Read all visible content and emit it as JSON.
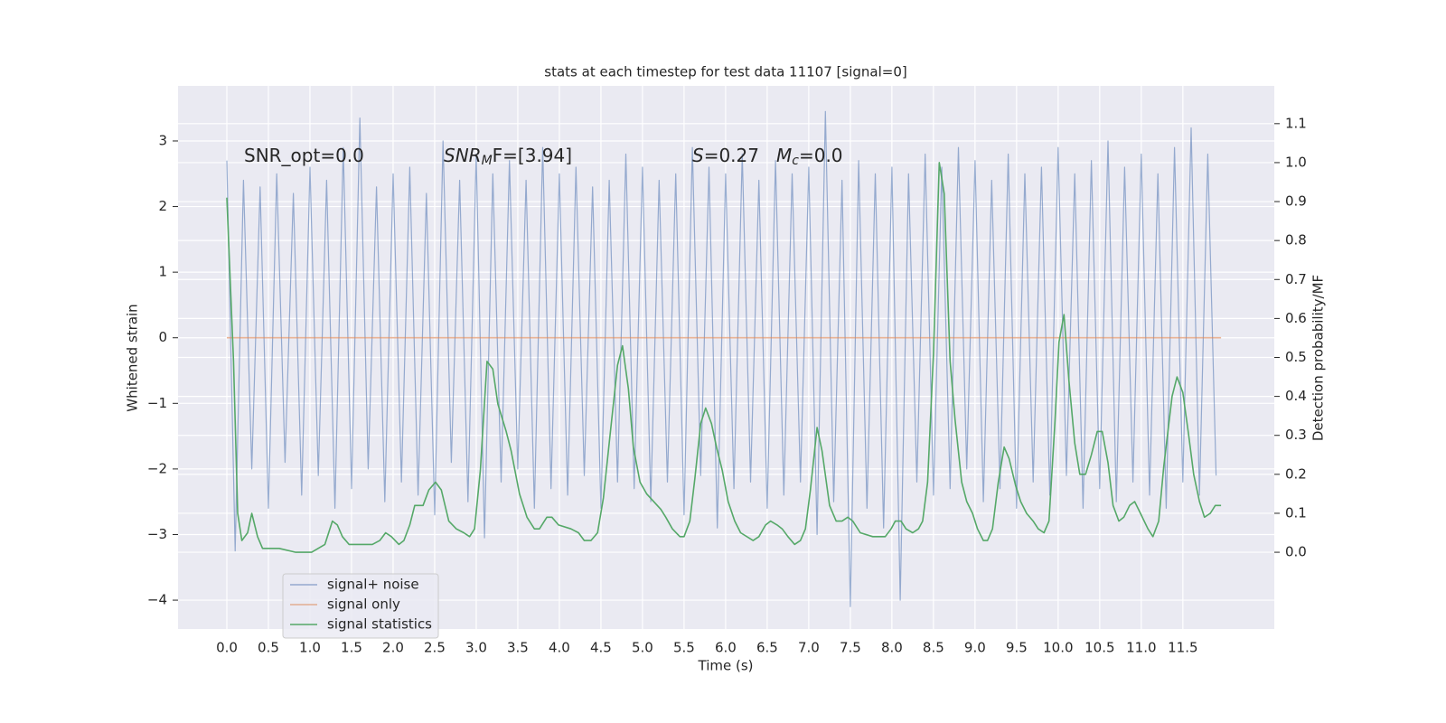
{
  "chart_data": {
    "type": "line",
    "title": "stats at each timestep for test data 11107 [signal=0]",
    "xlabel": "Time (s)",
    "ylabel": "Whitened strain",
    "y2label": "Detection probability/MF",
    "annotations": [
      [
        "SNR_opt=0.0"
      ],
      [
        "SNR",
        "M",
        "F=[3.94]"
      ],
      [
        "S",
        "=0.27"
      ],
      [
        "M",
        "c",
        "=0.0"
      ]
    ],
    "xlim": [
      -0.587,
      12.6
    ],
    "ylim": [
      -4.44,
      3.84
    ],
    "y2lim": [
      -0.197,
      1.197
    ],
    "xticks": [
      {
        "value": 0,
        "label": "0.0"
      },
      0.5,
      {
        "value": 1,
        "label": "1.0"
      },
      1.5,
      {
        "value": 2,
        "label": "2.0"
      },
      2.5,
      {
        "value": 3,
        "label": "3.0"
      },
      3.5,
      {
        "value": 4,
        "label": "4.0"
      },
      4.5,
      {
        "value": 5,
        "label": "5.0"
      },
      5.5,
      {
        "value": 6,
        "label": "6.0"
      },
      6.5,
      {
        "value": 7,
        "label": "7.0"
      },
      7.5,
      {
        "value": 8,
        "label": "8.0"
      },
      8.5,
      {
        "value": 9,
        "label": "9.0"
      },
      9.5,
      {
        "value": 10,
        "label": "10.0"
      },
      10.5,
      {
        "value": 11,
        "label": "11.0"
      },
      11.5
    ],
    "yticks": [
      {
        "value": -4,
        "label": "−4"
      },
      {
        "value": -3,
        "label": "−3"
      },
      {
        "value": -2,
        "label": "−2"
      },
      {
        "value": -1,
        "label": "−1"
      },
      0,
      1,
      2,
      3
    ],
    "y2ticks": [
      {
        "value": 0,
        "label": "0.0"
      },
      0.1,
      0.2,
      0.3,
      0.4,
      0.5,
      0.6,
      0.7,
      0.8,
      0.9,
      {
        "value": 1,
        "label": "1.0"
      },
      1.1
    ],
    "grid": true,
    "legend": "lower left",
    "series": [
      {
        "name": "signal+ noise",
        "color": "#4c72b0",
        "x": [
          0.0,
          0.1,
          0.2,
          0.3,
          0.4,
          0.5,
          0.6,
          0.7,
          0.8,
          0.9,
          1.0,
          1.1,
          1.2,
          1.3,
          1.4,
          1.5,
          1.6,
          1.7,
          1.8,
          1.9,
          2.0,
          2.1,
          2.2,
          2.3,
          2.4,
          2.5,
          2.6,
          2.7,
          2.8,
          2.9,
          3.0,
          3.1,
          3.2,
          3.3,
          3.4,
          3.5,
          3.6,
          3.7,
          3.8,
          3.9,
          4.0,
          4.1,
          4.2,
          4.3,
          4.4,
          4.5,
          4.6,
          4.7,
          4.8,
          4.9,
          5.0,
          5.1,
          5.2,
          5.3,
          5.4,
          5.5,
          5.6,
          5.7,
          5.8,
          5.9,
          6.0,
          6.1,
          6.2,
          6.3,
          6.4,
          6.5,
          6.6,
          6.7,
          6.8,
          6.9,
          7.0,
          7.1,
          7.2,
          7.3,
          7.4,
          7.5,
          7.6,
          7.7,
          7.8,
          7.9,
          8.0,
          8.1,
          8.2,
          8.3,
          8.4,
          8.5,
          8.6,
          8.7,
          8.8,
          8.9,
          9.0,
          9.1,
          9.2,
          9.3,
          9.4,
          9.5,
          9.6,
          9.7,
          9.8,
          9.9,
          10.0,
          10.1,
          10.2,
          10.3,
          10.4,
          10.5,
          10.6,
          10.7,
          10.8,
          10.9,
          11.0,
          11.1,
          11.2,
          11.3,
          11.4,
          11.5,
          11.6,
          11.7,
          11.8,
          11.9
        ],
        "values": [
          2.7,
          -3.25,
          2.4,
          -2.0,
          2.3,
          -2.6,
          2.5,
          -1.9,
          2.2,
          -2.4,
          2.6,
          -2.1,
          2.4,
          -2.6,
          2.9,
          -2.3,
          3.35,
          -2.0,
          2.3,
          -2.5,
          2.5,
          -2.2,
          2.6,
          -2.4,
          2.2,
          -2.7,
          3.0,
          -1.9,
          2.4,
          -2.5,
          2.8,
          -3.05,
          2.5,
          -2.2,
          2.7,
          -2.0,
          2.4,
          -2.6,
          2.9,
          -2.3,
          2.5,
          -2.4,
          2.6,
          -2.1,
          2.3,
          -2.6,
          2.4,
          -2.2,
          2.8,
          -2.3,
          2.6,
          -2.5,
          2.4,
          -2.2,
          2.5,
          -2.7,
          2.9,
          -2.1,
          2.6,
          -2.9,
          2.5,
          -2.3,
          2.8,
          -2.2,
          2.4,
          -2.6,
          2.7,
          -2.4,
          2.5,
          -2.2,
          2.6,
          -3.0,
          3.45,
          -2.5,
          2.4,
          -4.1,
          2.7,
          -2.6,
          2.5,
          -2.9,
          2.6,
          -4.0,
          2.5,
          -2.2,
          2.8,
          -2.4,
          2.6,
          -2.3,
          2.9,
          -2.0,
          2.7,
          -2.5,
          2.4,
          -2.3,
          2.8,
          -2.6,
          2.5,
          -2.2,
          2.6,
          -2.4,
          2.9,
          -2.1,
          2.5,
          -2.6,
          2.7,
          -2.3,
          3.0,
          -2.5,
          2.6,
          -2.2,
          2.8,
          -2.4,
          2.5,
          -2.6,
          2.9,
          -2.2,
          3.2,
          -2.4,
          2.8,
          -2.1
        ]
      },
      {
        "name": "signal only",
        "color": "#dd8452",
        "x": [
          0,
          11.96
        ],
        "values": [
          0,
          0
        ]
      },
      {
        "name": "signal statistics",
        "color": "#55a868",
        "axis": "y2",
        "x": [
          0.0,
          0.08,
          0.13,
          0.18,
          0.25,
          0.3,
          0.37,
          0.43,
          0.63,
          0.83,
          1.02,
          1.18,
          1.27,
          1.33,
          1.39,
          1.47,
          1.66,
          1.75,
          1.84,
          1.91,
          1.98,
          2.07,
          2.13,
          2.2,
          2.26,
          2.36,
          2.43,
          2.51,
          2.58,
          2.67,
          2.76,
          2.85,
          2.92,
          2.98,
          3.05,
          3.13,
          3.2,
          3.26,
          3.36,
          3.42,
          3.52,
          3.61,
          3.7,
          3.76,
          3.85,
          3.91,
          3.99,
          4.14,
          4.23,
          4.3,
          4.38,
          4.46,
          4.53,
          4.61,
          4.7,
          4.76,
          4.83,
          4.89,
          4.97,
          5.05,
          5.22,
          5.28,
          5.36,
          5.45,
          5.5,
          5.57,
          5.63,
          5.7,
          5.76,
          5.83,
          5.89,
          5.96,
          6.03,
          6.11,
          6.18,
          6.33,
          6.4,
          6.48,
          6.54,
          6.62,
          6.68,
          6.75,
          6.83,
          6.9,
          6.96,
          7.02,
          7.1,
          7.16,
          7.25,
          7.33,
          7.4,
          7.47,
          7.53,
          7.62,
          7.77,
          7.85,
          7.92,
          7.99,
          8.04,
          8.11,
          8.17,
          8.25,
          8.32,
          8.37,
          8.43,
          8.5,
          8.57,
          8.63,
          8.7,
          8.76,
          8.84,
          8.9,
          8.97,
          9.03,
          9.1,
          9.15,
          9.21,
          9.28,
          9.35,
          9.41,
          9.49,
          9.55,
          9.62,
          9.7,
          9.76,
          9.83,
          9.89,
          9.96,
          10.01,
          10.07,
          10.13,
          10.2,
          10.26,
          10.33,
          10.4,
          10.47,
          10.53,
          10.6,
          10.66,
          10.73,
          10.79,
          10.86,
          10.92,
          10.99,
          11.08,
          11.14,
          11.21,
          11.27,
          11.37,
          11.43,
          11.5,
          11.57,
          11.63,
          11.7,
          11.76,
          11.83,
          11.89,
          11.96
        ],
        "values": [
          0.91,
          0.49,
          0.1,
          0.03,
          0.05,
          0.1,
          0.04,
          0.01,
          0.01,
          0.0,
          0.0,
          0.02,
          0.08,
          0.07,
          0.04,
          0.02,
          0.02,
          0.02,
          0.03,
          0.05,
          0.04,
          0.02,
          0.03,
          0.07,
          0.12,
          0.12,
          0.16,
          0.18,
          0.16,
          0.08,
          0.06,
          0.05,
          0.04,
          0.06,
          0.21,
          0.49,
          0.47,
          0.38,
          0.31,
          0.26,
          0.15,
          0.09,
          0.06,
          0.06,
          0.09,
          0.09,
          0.07,
          0.06,
          0.05,
          0.03,
          0.03,
          0.05,
          0.14,
          0.3,
          0.48,
          0.53,
          0.42,
          0.27,
          0.18,
          0.15,
          0.11,
          0.09,
          0.06,
          0.04,
          0.04,
          0.08,
          0.19,
          0.33,
          0.37,
          0.33,
          0.27,
          0.21,
          0.13,
          0.08,
          0.05,
          0.03,
          0.04,
          0.07,
          0.08,
          0.07,
          0.06,
          0.04,
          0.02,
          0.03,
          0.06,
          0.16,
          0.32,
          0.26,
          0.12,
          0.08,
          0.08,
          0.09,
          0.08,
          0.05,
          0.04,
          0.04,
          0.04,
          0.06,
          0.08,
          0.08,
          0.06,
          0.05,
          0.06,
          0.08,
          0.18,
          0.51,
          1.0,
          0.92,
          0.49,
          0.34,
          0.18,
          0.13,
          0.1,
          0.06,
          0.03,
          0.03,
          0.06,
          0.18,
          0.27,
          0.24,
          0.17,
          0.13,
          0.1,
          0.08,
          0.06,
          0.05,
          0.08,
          0.33,
          0.54,
          0.61,
          0.44,
          0.28,
          0.2,
          0.2,
          0.25,
          0.31,
          0.31,
          0.23,
          0.12,
          0.08,
          0.09,
          0.12,
          0.13,
          0.1,
          0.06,
          0.04,
          0.08,
          0.22,
          0.4,
          0.45,
          0.41,
          0.3,
          0.2,
          0.13,
          0.09,
          0.1,
          0.12,
          0.12
        ]
      }
    ]
  }
}
